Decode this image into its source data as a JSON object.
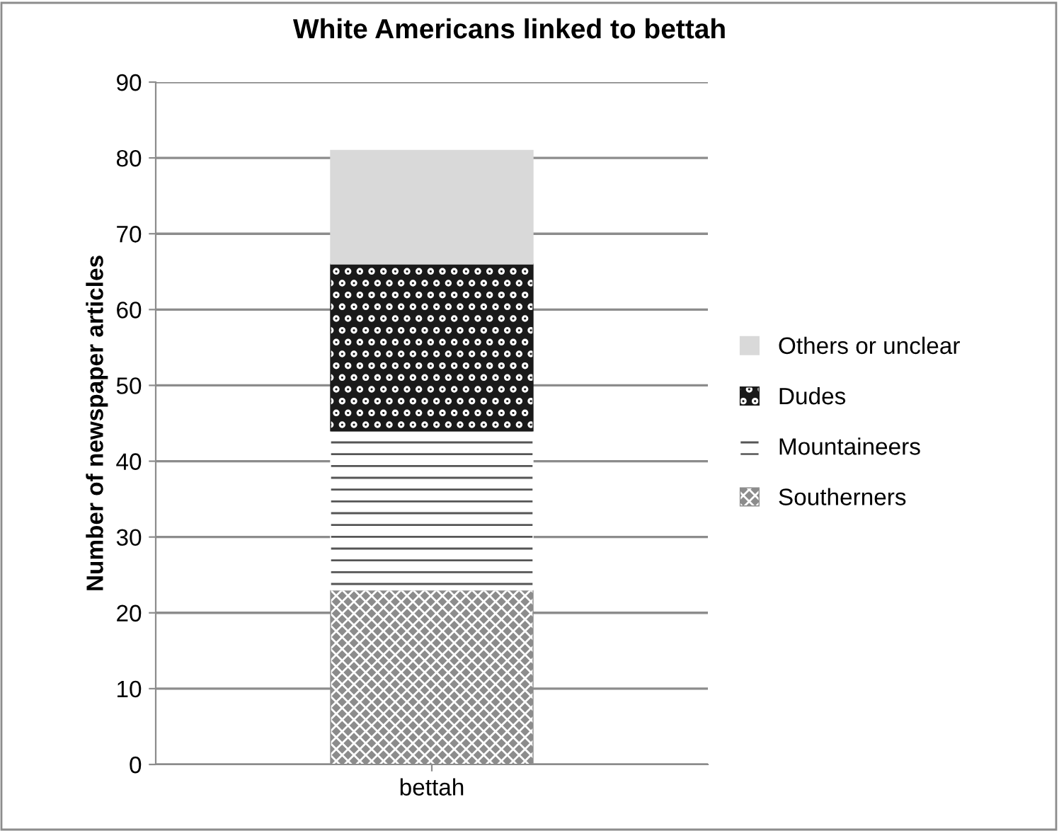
{
  "chart_data": {
    "type": "bar",
    "stacked": true,
    "title": "White Americans linked to bettah",
    "ylabel": "Number of newspaper articles",
    "categories": [
      "bettah"
    ],
    "series": [
      {
        "name": "Southerners",
        "color": "#8c8c8c",
        "values": [
          23
        ]
      },
      {
        "name": "Mountaineers",
        "color": "#ffffff",
        "values": [
          21
        ]
      },
      {
        "name": "Dudes",
        "color": "#1a1a1a",
        "values": [
          22
        ]
      },
      {
        "name": "Others or unclear",
        "color": "#d9d9d9",
        "values": [
          15
        ]
      }
    ],
    "ylim": [
      0,
      90
    ],
    "yticks": [
      0,
      10,
      20,
      30,
      40,
      50,
      60,
      70,
      80,
      90
    ],
    "grid": "y",
    "legend": "right"
  }
}
